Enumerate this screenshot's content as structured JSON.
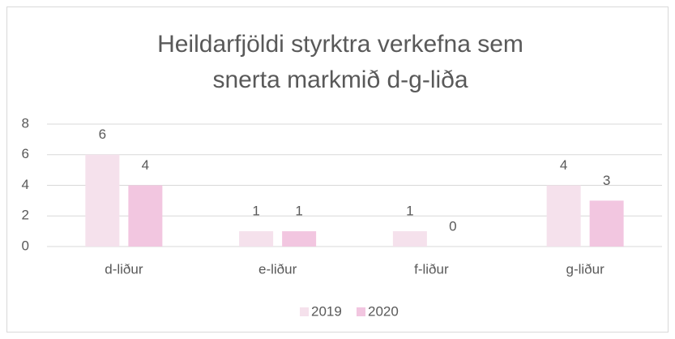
{
  "chart_data": {
    "type": "bar",
    "title": [
      "Heildarfjöldi styrktra verkefna sem",
      "snerta markmið d-g-liða"
    ],
    "categories": [
      "d-liður",
      "e-liður",
      "f-liður",
      "g-liður"
    ],
    "series": [
      {
        "name": "2019",
        "color": "#f5e1ec",
        "values": [
          6,
          1,
          1,
          4
        ]
      },
      {
        "name": "2020",
        "color": "#f2c6e0",
        "values": [
          4,
          1,
          0,
          3
        ]
      }
    ],
    "ylim": [
      0,
      8
    ],
    "yticks": [
      0,
      2,
      4,
      6,
      8
    ],
    "grid": true,
    "legend": "bottom"
  }
}
